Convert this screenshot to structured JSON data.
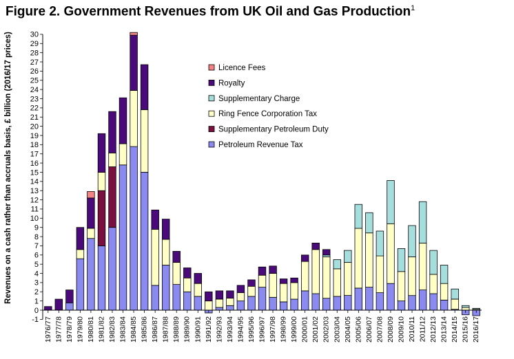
{
  "figure": {
    "title": "Figure 2. Government Revenues from UK Oil and Gas Production",
    "footnote_mark": "1"
  },
  "chart_data": {
    "type": "bar",
    "stacked": true,
    "ylabel": "Revenues on a cash rather than accruals basis, £ billion (2016/17 prices)",
    "xlabel": "",
    "ylim": [
      -1,
      30
    ],
    "yticks": [
      -1,
      0,
      1,
      2,
      3,
      4,
      5,
      6,
      7,
      8,
      9,
      10,
      11,
      12,
      13,
      14,
      15,
      16,
      17,
      18,
      19,
      20,
      21,
      22,
      23,
      24,
      25,
      26,
      27,
      28,
      29,
      30
    ],
    "grid": false,
    "legend_position": "center",
    "categories": [
      "1976/77",
      "1977/78",
      "1978/79",
      "1979/80",
      "1980/81",
      "1981/82",
      "1982/83",
      "1983/84",
      "1984/85",
      "1985/86",
      "1986/87",
      "1987/88",
      "1988/89",
      "1989/90",
      "1990/91",
      "1991/92",
      "1992/93",
      "1993/94",
      "1994/95",
      "1995/96",
      "1996/97",
      "1997/98",
      "1998/99",
      "1999/00",
      "2000/01",
      "2001/02",
      "2002/03",
      "2003/04",
      "2004/05",
      "2005/06",
      "2006/07",
      "2007/08",
      "2008/09",
      "2009/10",
      "2010/11",
      "2011/12",
      "2012/13",
      "2013/14",
      "2014/15",
      "2015/16",
      "2016/17"
    ],
    "series": [
      {
        "name": "Licence Fees",
        "color": "#f48484",
        "values": [
          0,
          0,
          0,
          0,
          0.7,
          0,
          0,
          0,
          0.3,
          0,
          0,
          0,
          0,
          0,
          0,
          0,
          0,
          0,
          0,
          0,
          0,
          0,
          0,
          0,
          0,
          0,
          0,
          0,
          0,
          0,
          0,
          0,
          0,
          0,
          0,
          0,
          0,
          0,
          0,
          0,
          0
        ]
      },
      {
        "name": "Royalty",
        "color": "#4b0a7a",
        "values": [
          0.4,
          1.2,
          1.4,
          2.4,
          3.3,
          4.2,
          4.5,
          5.0,
          6.0,
          4.9,
          2.1,
          2.2,
          1.2,
          1.1,
          1.1,
          1.0,
          0.9,
          0.8,
          0.8,
          0.7,
          0.9,
          0.8,
          0.5,
          0.5,
          0.7,
          0.7,
          0.6,
          0,
          0,
          0,
          0,
          0,
          0,
          0,
          0,
          0,
          0,
          0,
          0,
          0,
          0
        ]
      },
      {
        "name": "Supplementary Charge",
        "color": "#a6dedd",
        "values": [
          0,
          0,
          0,
          0,
          0,
          0,
          0,
          0,
          0,
          0,
          0,
          0,
          0,
          0,
          0,
          0,
          0,
          0,
          0,
          0,
          0,
          0,
          0,
          0,
          0,
          0,
          0.2,
          1.0,
          1.3,
          2.6,
          2.2,
          2.7,
          4.7,
          2.5,
          3.4,
          4.5,
          2.6,
          2.0,
          1.1,
          0.2,
          0.1
        ]
      },
      {
        "name": "Ring Fence Corporation Tax",
        "color": "#ffffc6",
        "values": [
          0,
          0,
          0,
          1.0,
          1.1,
          2.0,
          1.5,
          2.3,
          6.1,
          6.8,
          6.1,
          2.8,
          2.4,
          1.5,
          1.4,
          1.0,
          0.9,
          0.8,
          0.9,
          1.1,
          1.3,
          2.6,
          2.0,
          1.8,
          3.2,
          4.8,
          4.5,
          3.0,
          3.6,
          6.5,
          5.9,
          4.0,
          6.5,
          3.2,
          4.2,
          5.1,
          2.1,
          1.8,
          1.1,
          0.3,
          0.1
        ]
      },
      {
        "name": "Supplementary Petroleum Duty",
        "color": "#7a1040",
        "values": [
          0,
          0,
          0,
          0,
          0,
          6.0,
          6.6,
          0,
          0,
          0,
          0,
          0,
          0,
          0,
          0,
          0,
          0,
          0,
          0,
          0,
          0,
          0,
          0,
          0,
          0,
          0,
          0,
          0,
          0,
          0,
          0,
          0,
          0,
          0,
          0,
          0,
          0,
          0,
          0,
          0,
          0
        ]
      },
      {
        "name": "Petroleum Revenue Tax",
        "color": "#8a8af0",
        "values": [
          0,
          0,
          0.8,
          5.6,
          7.8,
          7.0,
          9.0,
          15.8,
          17.8,
          15.0,
          2.7,
          4.9,
          2.8,
          2.0,
          1.5,
          -0.3,
          0.3,
          0.5,
          1.0,
          1.5,
          2.5,
          1.4,
          0.9,
          1.2,
          2.1,
          1.8,
          1.3,
          1.5,
          1.6,
          2.4,
          2.5,
          1.9,
          2.9,
          1.0,
          1.6,
          2.2,
          1.8,
          1.1,
          0.1,
          -0.5,
          -0.6
        ]
      }
    ]
  }
}
